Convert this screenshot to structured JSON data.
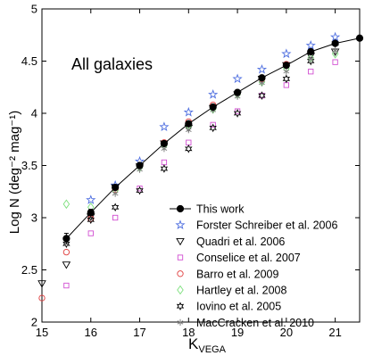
{
  "chart_data": {
    "type": "scatter",
    "title": "",
    "panel_label": "All galaxies",
    "xlabel_main": "K",
    "xlabel_sub": "VEGA",
    "ylabel": "Log N (deg⁻² mag⁻¹)",
    "xlim": [
      15,
      21.5
    ],
    "ylim": [
      2,
      5
    ],
    "x_ticks": [
      15,
      16,
      17,
      18,
      19,
      20,
      21
    ],
    "y_ticks": [
      2,
      2.5,
      3,
      3.5,
      4,
      4.5,
      5
    ],
    "x_tick_labels": [
      "15",
      "16",
      "17",
      "18",
      "19",
      "20",
      "21"
    ],
    "y_tick_labels": [
      "2",
      "2.5",
      "3",
      "3.5",
      "4",
      "4.5",
      "5"
    ],
    "grid": false,
    "legend_position": "bottom-right",
    "series": [
      {
        "name": "This work",
        "marker": "filled-circle",
        "color": "#000000",
        "line": true,
        "x": [
          15.5,
          16.0,
          16.5,
          17.0,
          17.5,
          18.0,
          18.5,
          19.0,
          19.5,
          20.0,
          20.5,
          21.0,
          21.5
        ],
        "y": [
          2.8,
          3.05,
          3.29,
          3.5,
          3.71,
          3.9,
          4.06,
          4.2,
          4.34,
          4.46,
          4.59,
          4.67,
          4.72
        ],
        "yerr": [
          0.05,
          0.03,
          0.02,
          0.02,
          0.02,
          0.02,
          0.02,
          0.01,
          0.01,
          0.01,
          0.01,
          0.01,
          0.01
        ]
      },
      {
        "name": "Forster Schreiber et al. 2006",
        "marker": "star",
        "color": "#4f6fe0",
        "x": [
          16.0,
          16.5,
          17.0,
          17.5,
          18.0,
          18.5,
          19.0,
          19.5,
          20.0,
          20.5,
          21.0
        ],
        "y": [
          3.17,
          3.31,
          3.54,
          3.87,
          4.01,
          4.18,
          4.33,
          4.42,
          4.57,
          4.65,
          4.73
        ]
      },
      {
        "name": "Quadri et al. 2006",
        "marker": "triangle-down",
        "color": "#000000",
        "x": [
          15.0,
          15.5,
          16.0,
          16.5,
          17.0,
          17.5,
          18.0,
          18.5,
          19.0,
          19.5,
          20.0,
          20.5,
          21.0
        ],
        "y": [
          2.37,
          2.55,
          3.01,
          3.29,
          3.49,
          3.71,
          3.86,
          4.05,
          4.18,
          4.33,
          4.46,
          4.55,
          4.59
        ]
      },
      {
        "name": "Conselice et al. 2007",
        "marker": "square",
        "color": "#d24fd2",
        "x": [
          15.5,
          16.0,
          16.5,
          17.0,
          17.5,
          18.0,
          18.5,
          19.0,
          19.5,
          20.0,
          20.5,
          21.0
        ],
        "y": [
          2.35,
          2.85,
          3.0,
          3.28,
          3.53,
          3.72,
          3.89,
          4.02,
          4.17,
          4.27,
          4.4,
          4.49
        ]
      },
      {
        "name": "Barro et al. 2009",
        "marker": "circle",
        "color": "#e03c3c",
        "x": [
          15.0,
          15.5,
          16.0,
          16.5,
          17.0,
          17.5,
          18.0,
          18.5,
          19.0,
          19.5,
          20.0
        ],
        "y": [
          2.23,
          2.67,
          2.99,
          3.27,
          3.5,
          3.72,
          3.92,
          4.08,
          4.19,
          4.33,
          4.47
        ]
      },
      {
        "name": "Hartley et al. 2008",
        "marker": "diamond",
        "color": "#7de07d",
        "x": [
          15.5,
          16.0,
          16.5,
          17.0,
          17.5,
          18.0,
          18.5,
          19.0,
          19.5,
          20.0,
          20.5,
          21.0
        ],
        "y": [
          3.13,
          3.1,
          3.26,
          3.48,
          3.69,
          3.88,
          4.04,
          4.18,
          4.3,
          4.43,
          4.53,
          4.57
        ]
      },
      {
        "name": "Iovino et al. 2005",
        "marker": "hexagram",
        "color": "#000000",
        "x": [
          15.5,
          16.0,
          16.5,
          17.0,
          17.5,
          18.0,
          18.5,
          19.0,
          19.5,
          20.0,
          20.5,
          21.0
        ],
        "y": [
          2.75,
          2.98,
          3.1,
          3.26,
          3.47,
          3.66,
          3.86,
          4.0,
          4.17,
          4.33,
          4.5,
          4.67
        ]
      },
      {
        "name": "MacCracken et al. 2010",
        "marker": "asterisk",
        "color": "#808080",
        "x": [
          16.5,
          17.0,
          17.5,
          18.0,
          18.5,
          19.0,
          19.5,
          20.0,
          20.5,
          21.0
        ],
        "y": [
          3.23,
          3.46,
          3.66,
          3.84,
          4.03,
          4.16,
          4.29,
          4.4,
          4.52,
          4.6
        ]
      }
    ]
  }
}
